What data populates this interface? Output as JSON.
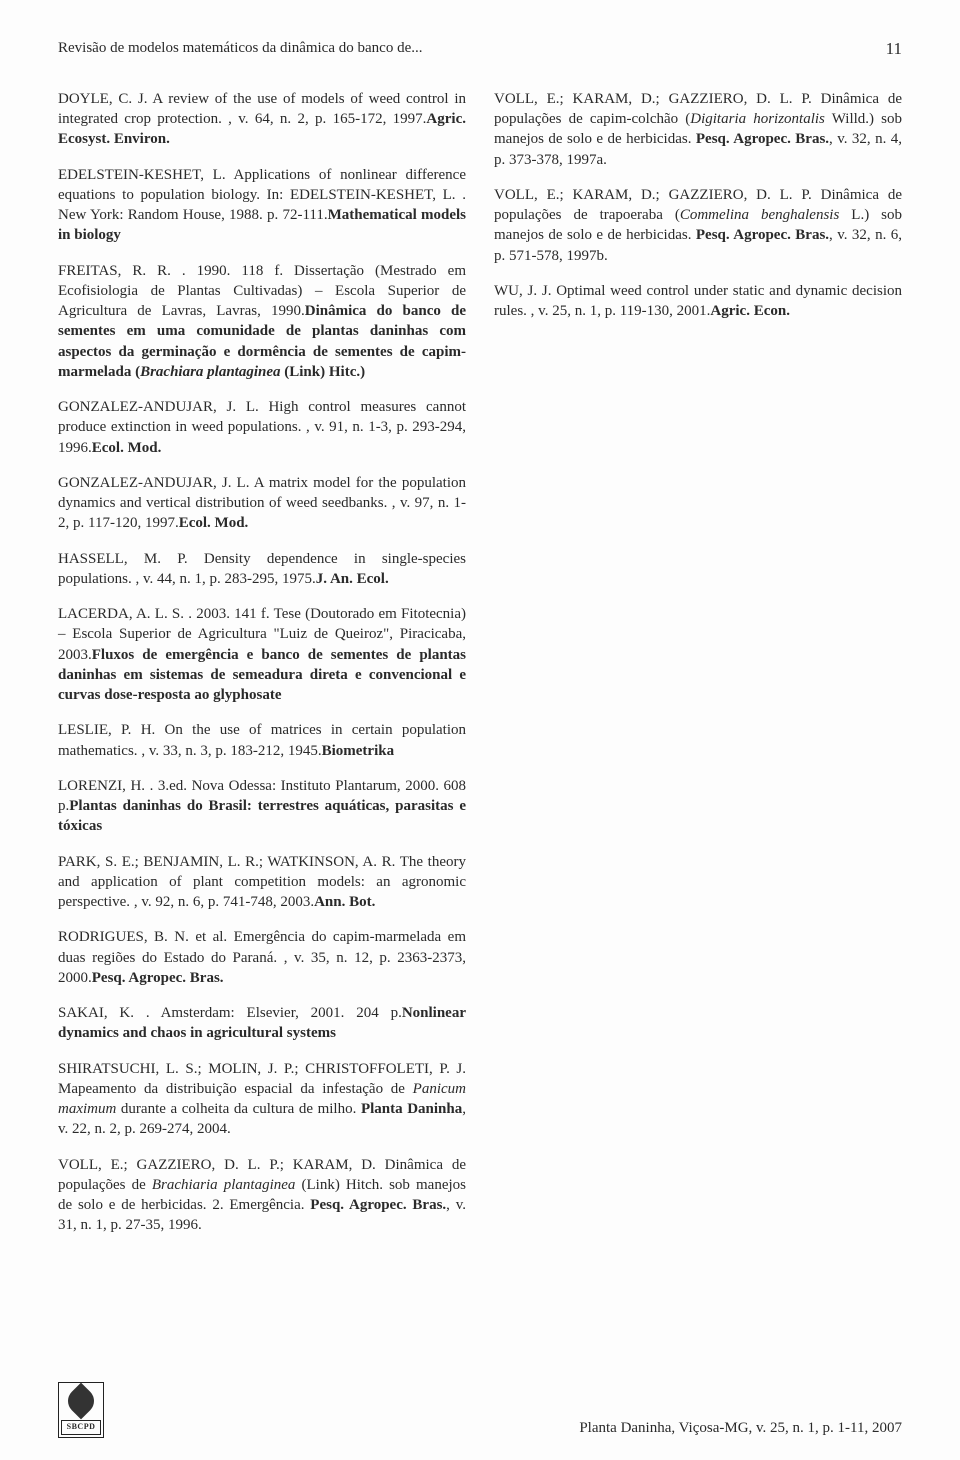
{
  "header": {
    "running_title": "Revisão de modelos matemáticos da dinâmica do banco de...",
    "page_number": "11"
  },
  "references": [
    {
      "plain1": "DOYLE, C. J.  A review of the use of models of weed control in integrated crop protection.  ",
      "bold1": "Agric. Ecosyst. Environ.",
      "plain2": ", v. 64, n. 2, p. 165-172, 1997."
    },
    {
      "plain1": "EDELSTEIN-KESHET, L.  Applications of  nonlinear difference equations to population biology. In: EDELSTEIN-KESHET, L.  ",
      "bold1": "Mathematical models in biology",
      "plain2": ".  New York: Random House, 1988.  p. 72-111."
    },
    {
      "plain1": "FREITAS, R. R.  ",
      "bold1": "Dinâmica do banco de sementes em uma comunidade de plantas daninhas com aspectos da germinação e dormência de sementes de capim-marmelada (",
      "bolditalic1": "Brachiara plantaginea",
      "bold2": " (Link) Hitc.)",
      "plain2": ".  1990.  118 f.  Dissertação (Mestrado em Ecofisiologia de Plantas Cultivadas) – Escola Superior de Agricultura de Lavras, Lavras, 1990."
    },
    {
      "plain1": "GONZALEZ-ANDUJAR, J. L.  High control measures cannot produce extinction in weed populations.  ",
      "bold1": "Ecol. Mod.",
      "plain2": ", v. 91, n. 1-3, p. 293-294, 1996."
    },
    {
      "plain1": "GONZALEZ-ANDUJAR, J. L.  A matrix model for the population dynamics and vertical distribution of weed seedbanks.  ",
      "bold1": "Ecol. Mod.",
      "plain2": ", v. 97, n. 1-2, p. 117-120, 1997."
    },
    {
      "plain1": "HASSELL, M. P.  Density dependence in single-species populations.  ",
      "bold1": "J. An. Ecol.",
      "plain2": ", v. 44, n. 1, p. 283-295, 1975."
    },
    {
      "plain1": "LACERDA, A. L. S.  ",
      "bold1": "Fluxos de emergência e banco de sementes de plantas daninhas em sistemas de semeadura direta e convencional e curvas dose-resposta ao glyphosate",
      "plain2": ".  2003.  141 f.  Tese (Doutorado em Fitotecnia) – Escola Superior de Agricultura \"Luiz de Queiroz\", Piracicaba, 2003."
    },
    {
      "plain1": "LESLIE, P. H.  On the use of matrices in certain population mathematics.  ",
      "bold1": "Biometrika",
      "plain2": ", v. 33, n. 3, p. 183-212, 1945."
    },
    {
      "plain1": "LORENZI, H.  ",
      "bold1": "Plantas daninhas do Brasil: terrestres aquáticas, parasitas e tóxicas",
      "plain2": ".  3.ed.  Nova Odessa: Instituto Plantarum, 2000.  608 p."
    },
    {
      "plain1": "PARK, S. E.; BENJAMIN, L. R.; WATKINSON, A. R.  The theory and application of plant competition models: an agronomic perspective.  ",
      "bold1": "Ann. Bot.",
      "plain2": ", v. 92, n. 6, p. 741-748, 2003."
    },
    {
      "plain1": "RODRIGUES, B. N. et al.  Emergência do capim-marmelada em duas regiões do Estado do Paraná.  ",
      "bold1": "Pesq. Agropec. Bras.",
      "plain2": ", v. 35, n. 12, p. 2363-2373, 2000."
    },
    {
      "plain1": "SAKAI, K.  ",
      "bold1": "Nonlinear dynamics and chaos in agricultural systems",
      "plain2": ".  Amsterdam: Elsevier, 2001.  204 p."
    },
    {
      "plain1": "SHIRATSUCHI, L. S.; MOLIN, J. P.; CHRISTOFFOLETI, P. J.  Mapeamento da distribuição espacial da infestação de ",
      "italic1": "Panicum maximum",
      "plain2": " durante a colheita da cultura de milho.  ",
      "bold1": "Planta Daninha",
      "plain3": ", v. 22, n. 2, p. 269-274, 2004."
    },
    {
      "plain1": "VOLL, E.; GAZZIERO, D. L. P.; KARAM, D.  Dinâmica de populações de ",
      "italic1": "Brachiaria plantaginea",
      "plain2": " (Link) Hitch. sob manejos de solo e de herbicidas. 2. Emergência.  ",
      "bold1": "Pesq. Agropec. Bras.",
      "plain3": ", v. 31, n. 1, p. 27-35, 1996."
    },
    {
      "plain1": "VOLL, E.; KARAM, D.; GAZZIERO, D. L. P.  Dinâmica de populações de capim-colchão (",
      "italic1": "Digitaria horizontalis",
      "plain2": " Willd.) sob manejos de solo e de herbicidas.  ",
      "bold1": "Pesq. Agropec. Bras.",
      "plain3": ", v. 32, n. 4, p. 373-378, 1997a."
    },
    {
      "plain1": "VOLL, E.; KARAM, D.; GAZZIERO, D. L. P.  Dinâmica de populações de trapoeraba (",
      "italic1": "Commelina benghalensis",
      "plain2": " L.) sob manejos de solo e de herbicidas.  ",
      "bold1": "Pesq. Agropec. Bras.",
      "plain3": ", v. 32, n. 6, p. 571-578, 1997b."
    },
    {
      "plain1": "WU, J. J.  Optimal weed control under static and dynamic decision rules.  ",
      "bold1": "Agric. Econ.",
      "plain2": ", v. 25, n. 1, p. 119-130, 2001."
    }
  ],
  "footer": {
    "logo_text": "SBCPD",
    "citation": "Planta Daninha, Viçosa-MG, v. 25, n. 1, p. 1-11, 2007"
  }
}
